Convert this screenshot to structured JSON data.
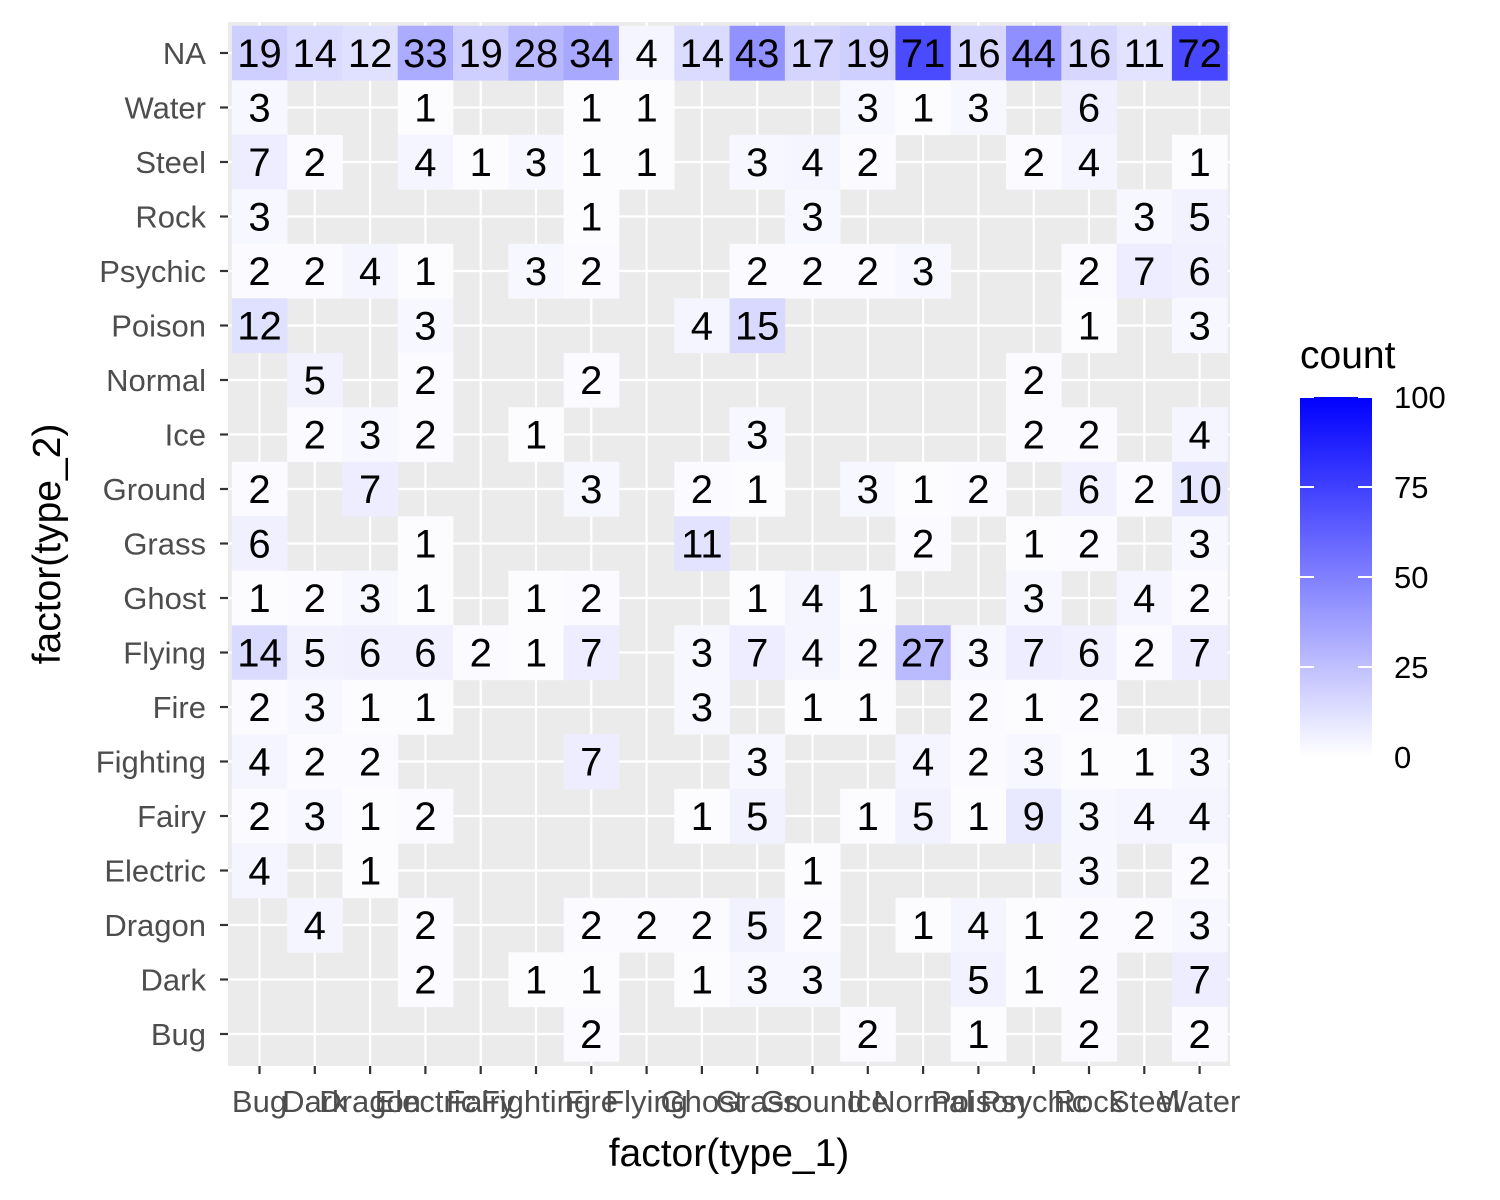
{
  "chart_data": {
    "type": "heatmap",
    "xlabel": "factor(type_1)",
    "ylabel": "factor(type_2)",
    "x_categories": [
      "Bug",
      "Dark",
      "Dragon",
      "Electric",
      "Fairy",
      "Fighting",
      "Fire",
      "Flying",
      "Ghost",
      "Grass",
      "Ground",
      "Ice",
      "Normal",
      "Poison",
      "Psychic",
      "Rock",
      "Steel",
      "Water"
    ],
    "y_categories": [
      "Bug",
      "Dark",
      "Dragon",
      "Electric",
      "Fairy",
      "Fighting",
      "Fire",
      "Flying",
      "Ghost",
      "Grass",
      "Ground",
      "Ice",
      "Normal",
      "Poison",
      "Psychic",
      "Rock",
      "Steel",
      "Water",
      "NA"
    ],
    "cells": [
      {
        "x": "Bug",
        "y": "NA",
        "count": 19
      },
      {
        "x": "Dark",
        "y": "NA",
        "count": 14
      },
      {
        "x": "Dragon",
        "y": "NA",
        "count": 12
      },
      {
        "x": "Electric",
        "y": "NA",
        "count": 33
      },
      {
        "x": "Fairy",
        "y": "NA",
        "count": 19
      },
      {
        "x": "Fighting",
        "y": "NA",
        "count": 28
      },
      {
        "x": "Fire",
        "y": "NA",
        "count": 34
      },
      {
        "x": "Flying",
        "y": "NA",
        "count": 4
      },
      {
        "x": "Ghost",
        "y": "NA",
        "count": 14
      },
      {
        "x": "Grass",
        "y": "NA",
        "count": 43
      },
      {
        "x": "Ground",
        "y": "NA",
        "count": 17
      },
      {
        "x": "Ice",
        "y": "NA",
        "count": 19
      },
      {
        "x": "Normal",
        "y": "NA",
        "count": 71
      },
      {
        "x": "Poison",
        "y": "NA",
        "count": 16
      },
      {
        "x": "Psychic",
        "y": "NA",
        "count": 44
      },
      {
        "x": "Rock",
        "y": "NA",
        "count": 16
      },
      {
        "x": "Steel",
        "y": "NA",
        "count": 11
      },
      {
        "x": "Water",
        "y": "NA",
        "count": 72
      },
      {
        "x": "Bug",
        "y": "Water",
        "count": 3
      },
      {
        "x": "Electric",
        "y": "Water",
        "count": 1
      },
      {
        "x": "Fire",
        "y": "Water",
        "count": 1
      },
      {
        "x": "Flying",
        "y": "Water",
        "count": 1
      },
      {
        "x": "Ice",
        "y": "Water",
        "count": 3
      },
      {
        "x": "Normal",
        "y": "Water",
        "count": 1
      },
      {
        "x": "Poison",
        "y": "Water",
        "count": 3
      },
      {
        "x": "Rock",
        "y": "Water",
        "count": 6
      },
      {
        "x": "Bug",
        "y": "Steel",
        "count": 7
      },
      {
        "x": "Dark",
        "y": "Steel",
        "count": 2
      },
      {
        "x": "Electric",
        "y": "Steel",
        "count": 4
      },
      {
        "x": "Fairy",
        "y": "Steel",
        "count": 1
      },
      {
        "x": "Fighting",
        "y": "Steel",
        "count": 3
      },
      {
        "x": "Fire",
        "y": "Steel",
        "count": 1
      },
      {
        "x": "Flying",
        "y": "Steel",
        "count": 1
      },
      {
        "x": "Grass",
        "y": "Steel",
        "count": 3
      },
      {
        "x": "Ground",
        "y": "Steel",
        "count": 4
      },
      {
        "x": "Ice",
        "y": "Steel",
        "count": 2
      },
      {
        "x": "Psychic",
        "y": "Steel",
        "count": 2
      },
      {
        "x": "Rock",
        "y": "Steel",
        "count": 4
      },
      {
        "x": "Water",
        "y": "Steel",
        "count": 1
      },
      {
        "x": "Bug",
        "y": "Rock",
        "count": 3
      },
      {
        "x": "Fire",
        "y": "Rock",
        "count": 1
      },
      {
        "x": "Ground",
        "y": "Rock",
        "count": 3
      },
      {
        "x": "Steel",
        "y": "Rock",
        "count": 3
      },
      {
        "x": "Water",
        "y": "Rock",
        "count": 5
      },
      {
        "x": "Bug",
        "y": "Psychic",
        "count": 2
      },
      {
        "x": "Dark",
        "y": "Psychic",
        "count": 2
      },
      {
        "x": "Dragon",
        "y": "Psychic",
        "count": 4
      },
      {
        "x": "Electric",
        "y": "Psychic",
        "count": 1
      },
      {
        "x": "Fighting",
        "y": "Psychic",
        "count": 3
      },
      {
        "x": "Fire",
        "y": "Psychic",
        "count": 2
      },
      {
        "x": "Grass",
        "y": "Psychic",
        "count": 2
      },
      {
        "x": "Ground",
        "y": "Psychic",
        "count": 2
      },
      {
        "x": "Ice",
        "y": "Psychic",
        "count": 2
      },
      {
        "x": "Normal",
        "y": "Psychic",
        "count": 3
      },
      {
        "x": "Rock",
        "y": "Psychic",
        "count": 2
      },
      {
        "x": "Steel",
        "y": "Psychic",
        "count": 7
      },
      {
        "x": "Water",
        "y": "Psychic",
        "count": 6
      },
      {
        "x": "Bug",
        "y": "Poison",
        "count": 12
      },
      {
        "x": "Electric",
        "y": "Poison",
        "count": 3
      },
      {
        "x": "Ghost",
        "y": "Poison",
        "count": 4
      },
      {
        "x": "Grass",
        "y": "Poison",
        "count": 15
      },
      {
        "x": "Rock",
        "y": "Poison",
        "count": 1
      },
      {
        "x": "Water",
        "y": "Poison",
        "count": 3
      },
      {
        "x": "Dark",
        "y": "Normal",
        "count": 5
      },
      {
        "x": "Electric",
        "y": "Normal",
        "count": 2
      },
      {
        "x": "Fire",
        "y": "Normal",
        "count": 2
      },
      {
        "x": "Psychic",
        "y": "Normal",
        "count": 2
      },
      {
        "x": "Dark",
        "y": "Ice",
        "count": 2
      },
      {
        "x": "Dragon",
        "y": "Ice",
        "count": 3
      },
      {
        "x": "Electric",
        "y": "Ice",
        "count": 2
      },
      {
        "x": "Fighting",
        "y": "Ice",
        "count": 1
      },
      {
        "x": "Grass",
        "y": "Ice",
        "count": 3
      },
      {
        "x": "Psychic",
        "y": "Ice",
        "count": 2
      },
      {
        "x": "Rock",
        "y": "Ice",
        "count": 2
      },
      {
        "x": "Water",
        "y": "Ice",
        "count": 4
      },
      {
        "x": "Bug",
        "y": "Ground",
        "count": 2
      },
      {
        "x": "Dragon",
        "y": "Ground",
        "count": 7
      },
      {
        "x": "Fire",
        "y": "Ground",
        "count": 3
      },
      {
        "x": "Ghost",
        "y": "Ground",
        "count": 2
      },
      {
        "x": "Grass",
        "y": "Ground",
        "count": 1
      },
      {
        "x": "Ice",
        "y": "Ground",
        "count": 3
      },
      {
        "x": "Normal",
        "y": "Ground",
        "count": 1
      },
      {
        "x": "Poison",
        "y": "Ground",
        "count": 2
      },
      {
        "x": "Rock",
        "y": "Ground",
        "count": 6
      },
      {
        "x": "Steel",
        "y": "Ground",
        "count": 2
      },
      {
        "x": "Water",
        "y": "Ground",
        "count": 10
      },
      {
        "x": "Bug",
        "y": "Grass",
        "count": 6
      },
      {
        "x": "Electric",
        "y": "Grass",
        "count": 1
      },
      {
        "x": "Ghost",
        "y": "Grass",
        "count": 11
      },
      {
        "x": "Normal",
        "y": "Grass",
        "count": 2
      },
      {
        "x": "Psychic",
        "y": "Grass",
        "count": 1
      },
      {
        "x": "Rock",
        "y": "Grass",
        "count": 2
      },
      {
        "x": "Water",
        "y": "Grass",
        "count": 3
      },
      {
        "x": "Bug",
        "y": "Ghost",
        "count": 1
      },
      {
        "x": "Dark",
        "y": "Ghost",
        "count": 2
      },
      {
        "x": "Dragon",
        "y": "Ghost",
        "count": 3
      },
      {
        "x": "Electric",
        "y": "Ghost",
        "count": 1
      },
      {
        "x": "Fighting",
        "y": "Ghost",
        "count": 1
      },
      {
        "x": "Fire",
        "y": "Ghost",
        "count": 2
      },
      {
        "x": "Grass",
        "y": "Ghost",
        "count": 1
      },
      {
        "x": "Ground",
        "y": "Ghost",
        "count": 4
      },
      {
        "x": "Ice",
        "y": "Ghost",
        "count": 1
      },
      {
        "x": "Psychic",
        "y": "Ghost",
        "count": 3
      },
      {
        "x": "Steel",
        "y": "Ghost",
        "count": 4
      },
      {
        "x": "Water",
        "y": "Ghost",
        "count": 2
      },
      {
        "x": "Bug",
        "y": "Flying",
        "count": 14
      },
      {
        "x": "Dark",
        "y": "Flying",
        "count": 5
      },
      {
        "x": "Dragon",
        "y": "Flying",
        "count": 6
      },
      {
        "x": "Electric",
        "y": "Flying",
        "count": 6
      },
      {
        "x": "Fairy",
        "y": "Flying",
        "count": 2
      },
      {
        "x": "Fighting",
        "y": "Flying",
        "count": 1
      },
      {
        "x": "Fire",
        "y": "Flying",
        "count": 7
      },
      {
        "x": "Ghost",
        "y": "Flying",
        "count": 3
      },
      {
        "x": "Grass",
        "y": "Flying",
        "count": 7
      },
      {
        "x": "Ground",
        "y": "Flying",
        "count": 4
      },
      {
        "x": "Ice",
        "y": "Flying",
        "count": 2
      },
      {
        "x": "Normal",
        "y": "Flying",
        "count": 27
      },
      {
        "x": "Poison",
        "y": "Flying",
        "count": 3
      },
      {
        "x": "Psychic",
        "y": "Flying",
        "count": 7
      },
      {
        "x": "Rock",
        "y": "Flying",
        "count": 6
      },
      {
        "x": "Steel",
        "y": "Flying",
        "count": 2
      },
      {
        "x": "Water",
        "y": "Flying",
        "count": 7
      },
      {
        "x": "Bug",
        "y": "Fire",
        "count": 2
      },
      {
        "x": "Dark",
        "y": "Fire",
        "count": 3
      },
      {
        "x": "Dragon",
        "y": "Fire",
        "count": 1
      },
      {
        "x": "Electric",
        "y": "Fire",
        "count": 1
      },
      {
        "x": "Ghost",
        "y": "Fire",
        "count": 3
      },
      {
        "x": "Ground",
        "y": "Fire",
        "count": 1
      },
      {
        "x": "Ice",
        "y": "Fire",
        "count": 1
      },
      {
        "x": "Poison",
        "y": "Fire",
        "count": 2
      },
      {
        "x": "Psychic",
        "y": "Fire",
        "count": 1
      },
      {
        "x": "Rock",
        "y": "Fire",
        "count": 2
      },
      {
        "x": "Bug",
        "y": "Fighting",
        "count": 4
      },
      {
        "x": "Dark",
        "y": "Fighting",
        "count": 2
      },
      {
        "x": "Dragon",
        "y": "Fighting",
        "count": 2
      },
      {
        "x": "Fire",
        "y": "Fighting",
        "count": 7
      },
      {
        "x": "Grass",
        "y": "Fighting",
        "count": 3
      },
      {
        "x": "Normal",
        "y": "Fighting",
        "count": 4
      },
      {
        "x": "Poison",
        "y": "Fighting",
        "count": 2
      },
      {
        "x": "Psychic",
        "y": "Fighting",
        "count": 3
      },
      {
        "x": "Rock",
        "y": "Fighting",
        "count": 1
      },
      {
        "x": "Steel",
        "y": "Fighting",
        "count": 1
      },
      {
        "x": "Water",
        "y": "Fighting",
        "count": 3
      },
      {
        "x": "Bug",
        "y": "Fairy",
        "count": 2
      },
      {
        "x": "Dark",
        "y": "Fairy",
        "count": 3
      },
      {
        "x": "Dragon",
        "y": "Fairy",
        "count": 1
      },
      {
        "x": "Electric",
        "y": "Fairy",
        "count": 2
      },
      {
        "x": "Ghost",
        "y": "Fairy",
        "count": 1
      },
      {
        "x": "Grass",
        "y": "Fairy",
        "count": 5
      },
      {
        "x": "Ice",
        "y": "Fairy",
        "count": 1
      },
      {
        "x": "Normal",
        "y": "Fairy",
        "count": 5
      },
      {
        "x": "Poison",
        "y": "Fairy",
        "count": 1
      },
      {
        "x": "Psychic",
        "y": "Fairy",
        "count": 9
      },
      {
        "x": "Rock",
        "y": "Fairy",
        "count": 3
      },
      {
        "x": "Steel",
        "y": "Fairy",
        "count": 4
      },
      {
        "x": "Water",
        "y": "Fairy",
        "count": 4
      },
      {
        "x": "Bug",
        "y": "Electric",
        "count": 4
      },
      {
        "x": "Dragon",
        "y": "Electric",
        "count": 1
      },
      {
        "x": "Ground",
        "y": "Electric",
        "count": 1
      },
      {
        "x": "Rock",
        "y": "Electric",
        "count": 3
      },
      {
        "x": "Water",
        "y": "Electric",
        "count": 2
      },
      {
        "x": "Dark",
        "y": "Dragon",
        "count": 4
      },
      {
        "x": "Electric",
        "y": "Dragon",
        "count": 2
      },
      {
        "x": "Fire",
        "y": "Dragon",
        "count": 2
      },
      {
        "x": "Flying",
        "y": "Dragon",
        "count": 2
      },
      {
        "x": "Ghost",
        "y": "Dragon",
        "count": 2
      },
      {
        "x": "Grass",
        "y": "Dragon",
        "count": 5
      },
      {
        "x": "Ground",
        "y": "Dragon",
        "count": 2
      },
      {
        "x": "Normal",
        "y": "Dragon",
        "count": 1
      },
      {
        "x": "Poison",
        "y": "Dragon",
        "count": 4
      },
      {
        "x": "Psychic",
        "y": "Dragon",
        "count": 1
      },
      {
        "x": "Rock",
        "y": "Dragon",
        "count": 2
      },
      {
        "x": "Steel",
        "y": "Dragon",
        "count": 2
      },
      {
        "x": "Water",
        "y": "Dragon",
        "count": 3
      },
      {
        "x": "Electric",
        "y": "Dark",
        "count": 2
      },
      {
        "x": "Fighting",
        "y": "Dark",
        "count": 1
      },
      {
        "x": "Fire",
        "y": "Dark",
        "count": 1
      },
      {
        "x": "Ghost",
        "y": "Dark",
        "count": 1
      },
      {
        "x": "Grass",
        "y": "Dark",
        "count": 3
      },
      {
        "x": "Ground",
        "y": "Dark",
        "count": 3
      },
      {
        "x": "Poison",
        "y": "Dark",
        "count": 5
      },
      {
        "x": "Psychic",
        "y": "Dark",
        "count": 1
      },
      {
        "x": "Rock",
        "y": "Dark",
        "count": 2
      },
      {
        "x": "Water",
        "y": "Dark",
        "count": 7
      },
      {
        "x": "Fire",
        "y": "Bug",
        "count": 2
      },
      {
        "x": "Ice",
        "y": "Bug",
        "count": 2
      },
      {
        "x": "Poison",
        "y": "Bug",
        "count": 1
      },
      {
        "x": "Rock",
        "y": "Bug",
        "count": 2
      },
      {
        "x": "Water",
        "y": "Bug",
        "count": 2
      }
    ],
    "legend": {
      "title": "count",
      "min": 0,
      "max": 100,
      "breaks": [
        0,
        25,
        50,
        75,
        100
      ],
      "low_color": "#ffffff",
      "high_color": "#0000ff"
    },
    "grid": true,
    "legend_position": "right"
  }
}
